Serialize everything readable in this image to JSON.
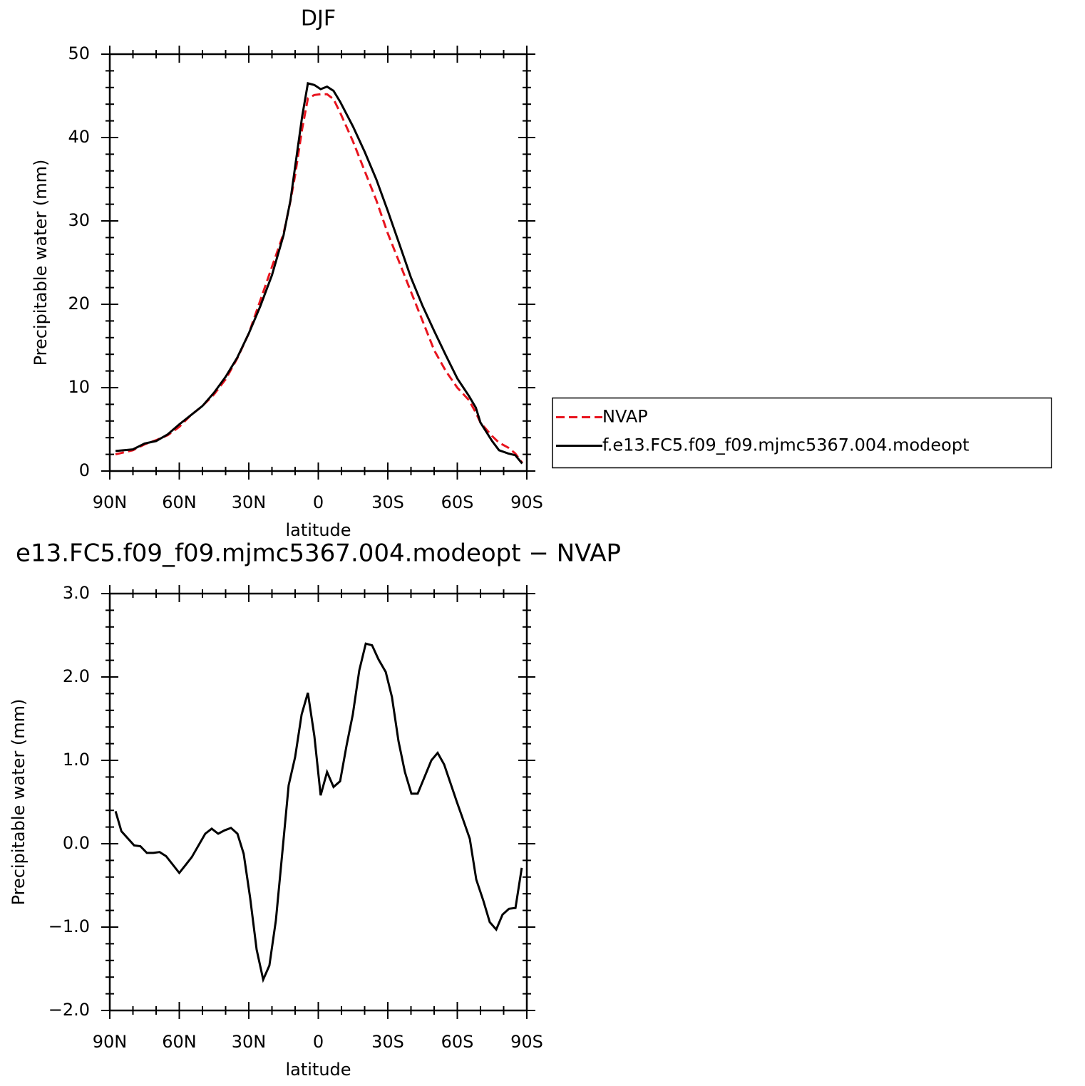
{
  "chart_data": [
    {
      "type": "line",
      "title": "DJF",
      "ylabel": "Precipitable water (mm)",
      "xlabel": "latitude",
      "x": [
        87.5,
        80,
        75,
        70,
        65,
        60,
        55,
        50,
        45,
        40,
        35,
        30,
        25,
        20,
        15,
        12,
        10,
        7,
        4.5,
        1.7,
        -1,
        -3.8,
        -6.6,
        -9.4,
        -15,
        -20,
        -25,
        -30,
        -35,
        -40,
        -45,
        -50,
        -55,
        -60,
        -65,
        -68,
        -70,
        -75,
        -78,
        -82,
        -85,
        -88
      ],
      "series": [
        {
          "name": "NVAP",
          "color": "#e8141e",
          "dash": "dashed",
          "values": [
            2.0,
            2.5,
            3.2,
            3.7,
            4.3,
            5.3,
            6.7,
            7.8,
            9.2,
            11.0,
            13.5,
            16.5,
            20.5,
            24.5,
            28.5,
            32.4,
            35.5,
            41,
            44.7,
            45.1,
            45.2,
            45.2,
            44.6,
            43,
            39.5,
            36,
            32.5,
            28.5,
            25,
            21.5,
            18,
            14.5,
            12,
            10,
            8.5,
            7,
            5.8,
            4.2,
            3.4,
            2.8,
            2.1,
            1.0
          ]
        },
        {
          "name": "f.e13.FC5.f09_f09.mjmc5367.004.modeopt",
          "color": "#000000",
          "dash": "solid",
          "values": [
            2.4,
            2.6,
            3.3,
            3.6,
            4.4,
            5.6,
            6.7,
            7.8,
            9.4,
            11.3,
            13.6,
            16.5,
            19.8,
            23.5,
            28.3,
            32.5,
            36.5,
            42.5,
            46.5,
            46.3,
            45.8,
            46.1,
            45.6,
            44.3,
            41.3,
            38.3,
            35,
            31.2,
            27.2,
            23.2,
            19.8,
            16.8,
            13.9,
            11.1,
            9.0,
            7.6,
            5.8,
            3.6,
            2.5,
            2.1,
            1.9,
            0.9
          ]
        }
      ],
      "xlim": [
        90,
        -90
      ],
      "xticks": [
        {
          "value": 90,
          "label": "90N"
        },
        {
          "value": 60,
          "label": "60N"
        },
        {
          "value": 30,
          "label": "30N"
        },
        0,
        {
          "value": -30,
          "label": "30S"
        },
        {
          "value": -60,
          "label": "60S"
        },
        {
          "value": -90,
          "label": "90S"
        }
      ],
      "ylim": [
        0,
        50
      ],
      "yticks": [
        0,
        10,
        20,
        30,
        40,
        50
      ],
      "legend": "right"
    },
    {
      "type": "line",
      "title": "e13.FC5.f09_f09.mjmc5367.004.modeopt  − NVAP",
      "ylabel": "Precipitable water (mm)",
      "xlabel": "latitude",
      "x": [
        87.5,
        85,
        79.5,
        76.8,
        74,
        71.2,
        68.5,
        65.7,
        60,
        57.4,
        54.6,
        48.8,
        46,
        43.2,
        40.5,
        37.7,
        34.9,
        32.2,
        29.4,
        26.6,
        23.8,
        21.1,
        18.3,
        15.5,
        12.8,
        10,
        7.2,
        4.5,
        1.7,
        -1,
        -3.8,
        -6.6,
        -9.4,
        -12.2,
        -14.9,
        -17.7,
        -20.5,
        -23.2,
        -26,
        -29.1,
        -31.8,
        -34.6,
        -37.4,
        -40.2,
        -42.9,
        -46,
        -48.8,
        -51.5,
        -54.3,
        -57,
        -59.8,
        -62.6,
        -65.4,
        -68.2,
        -71.2,
        -74,
        -76.8,
        -79.5,
        -82.3,
        -85.1,
        -87.8
      ],
      "series": [
        {
          "color": "#000000",
          "dash": "solid",
          "values": [
            0.39,
            0.15,
            -0.02,
            -0.03,
            -0.11,
            -0.11,
            -0.1,
            -0.15,
            -0.35,
            -0.26,
            -0.16,
            0.12,
            0.18,
            0.12,
            0.16,
            0.19,
            0.12,
            -0.12,
            -0.65,
            -1.27,
            -1.63,
            -1.46,
            -0.92,
            -0.1,
            0.7,
            1.04,
            1.55,
            1.81,
            1.29,
            0.58,
            0.86,
            0.68,
            0.75,
            1.18,
            1.55,
            2.08,
            2.4,
            2.38,
            2.21,
            2.06,
            1.76,
            1.23,
            0.86,
            0.6,
            0.6,
            0.81,
            1.0,
            1.09,
            0.95,
            0.73,
            0.5,
            0.28,
            0.06,
            -0.43,
            -0.68,
            -0.94,
            -1.03,
            -0.85,
            -0.78,
            -0.77,
            -0.29
          ]
        }
      ],
      "xlim": [
        90,
        -90
      ],
      "xticks": [
        {
          "value": 90,
          "label": "90N"
        },
        {
          "value": 60,
          "label": "60N"
        },
        {
          "value": 30,
          "label": "30N"
        },
        0,
        {
          "value": -30,
          "label": "30S"
        },
        {
          "value": -60,
          "label": "60S"
        },
        {
          "value": -90,
          "label": "90S"
        }
      ],
      "ylim": [
        -2,
        3
      ],
      "yticks": [
        {
          "value": -2,
          "label": "−2.0"
        },
        {
          "value": -1,
          "label": "−1.0"
        },
        {
          "value": 0,
          "label": "0.0"
        },
        {
          "value": 1,
          "label": "1.0"
        },
        {
          "value": 2,
          "label": "2.0"
        },
        {
          "value": 3,
          "label": "3.0"
        }
      ]
    }
  ]
}
